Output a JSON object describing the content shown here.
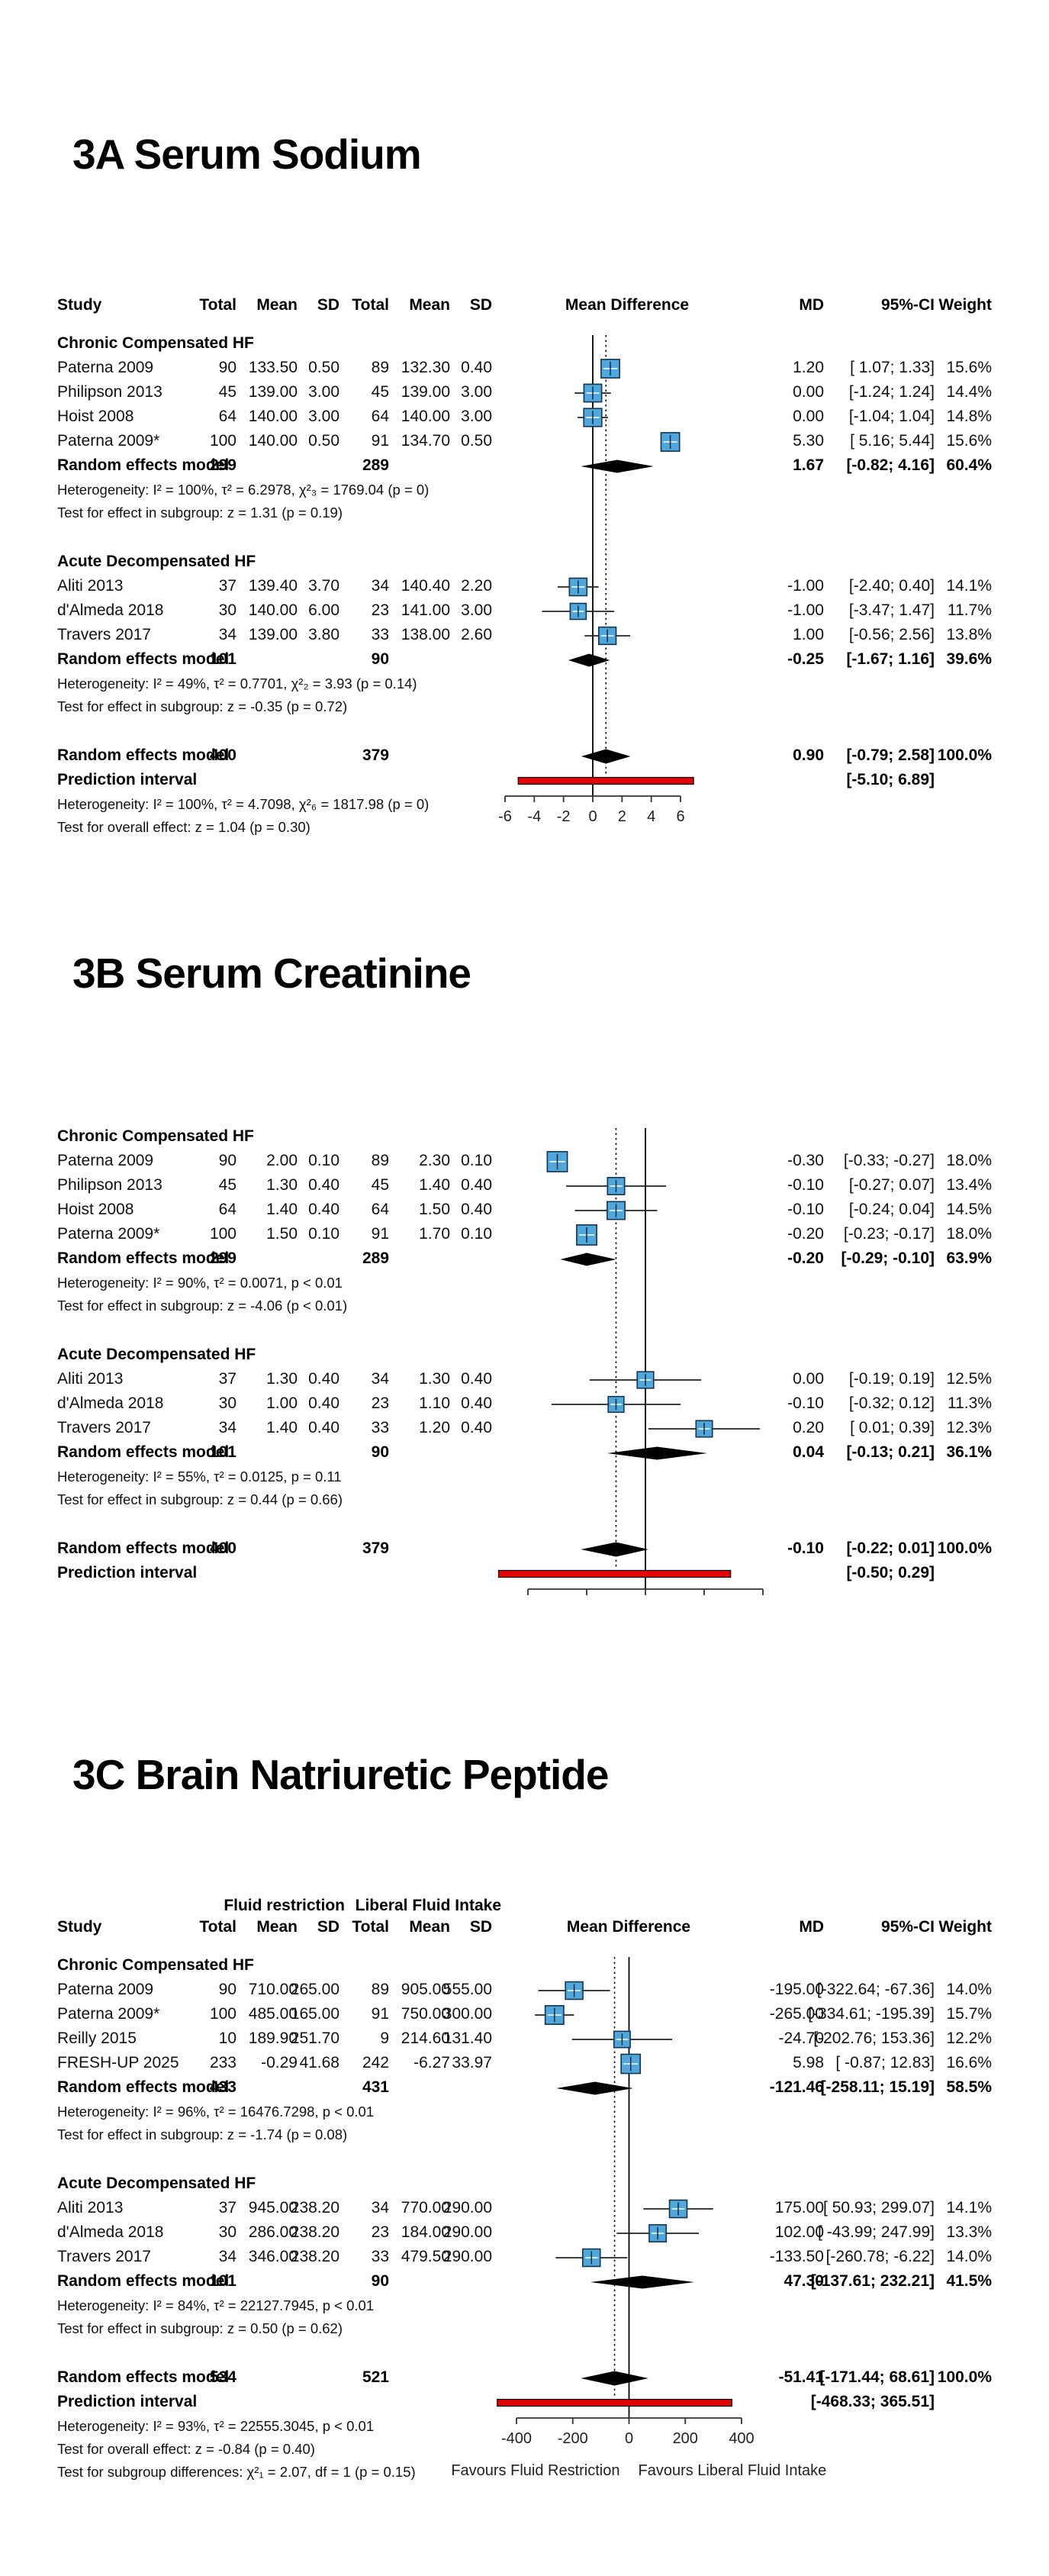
{
  "colors": {
    "marker_fill": "#4fa7db",
    "marker_border": "#16344f",
    "ci_line": "#222222",
    "diamond": "#000000",
    "prediction_bar": "#e00404",
    "axis": "#333333",
    "ref_line": "#000000"
  },
  "chart_data": {
    "type": "forest",
    "effect_measure": "Mean Difference",
    "panels": [
      {
        "id": "3A",
        "title": "3A Serum Sodium",
        "header": {
          "study": "Study",
          "total": "Total",
          "mean": "Mean",
          "sd": "SD",
          "mean_difference": "Mean Difference",
          "md": "MD",
          "ci": "95%-CI",
          "weight": "Weight"
        },
        "axis": {
          "ticks": [
            -6,
            -4,
            -2,
            0,
            2,
            4,
            6
          ],
          "tick_labels": [
            "-6",
            "-4",
            "-2",
            "0",
            "2",
            "4",
            "6"
          ]
        },
        "rows": [
          {
            "type": "group",
            "label": "Chronic Compensated HF"
          },
          {
            "type": "study",
            "label": "Paterna 2009",
            "t1": "90",
            "m1": "133.50",
            "sd1": "0.50",
            "t2": "89",
            "m2": "132.30",
            "sd2": "0.40",
            "md": 1.2,
            "lo": 1.07,
            "hi": 1.33,
            "md_text": "1.20",
            "ci_text": "[ 1.07; 1.33]",
            "w": 15.6,
            "w_text": "15.6%"
          },
          {
            "type": "study",
            "label": "Philipson 2013",
            "t1": "45",
            "m1": "139.00",
            "sd1": "3.00",
            "t2": "45",
            "m2": "139.00",
            "sd2": "3.00",
            "md": 0.0,
            "lo": -1.24,
            "hi": 1.24,
            "md_text": "0.00",
            "ci_text": "[-1.24; 1.24]",
            "w": 14.4,
            "w_text": "14.4%"
          },
          {
            "type": "study",
            "label": "Hoist 2008",
            "t1": "64",
            "m1": "140.00",
            "sd1": "3.00",
            "t2": "64",
            "m2": "140.00",
            "sd2": "3.00",
            "md": 0.0,
            "lo": -1.04,
            "hi": 1.04,
            "md_text": "0.00",
            "ci_text": "[-1.04; 1.04]",
            "w": 14.8,
            "w_text": "14.8%"
          },
          {
            "type": "study",
            "label": "Paterna 2009*",
            "t1": "100",
            "m1": "140.00",
            "sd1": "0.50",
            "t2": "91",
            "m2": "134.70",
            "sd2": "0.50",
            "md": 5.3,
            "lo": 5.16,
            "hi": 5.44,
            "md_text": "5.30",
            "ci_text": "[ 5.16; 5.44]",
            "w": 15.6,
            "w_text": "15.6%"
          },
          {
            "type": "pooled",
            "label": "Random effects model",
            "t1": "299",
            "t2": "289",
            "md": 1.67,
            "lo": -0.82,
            "hi": 4.16,
            "md_text": "1.67",
            "ci_text": "[-0.82; 4.16]",
            "w_text": "60.4%"
          },
          {
            "type": "het",
            "text": "Heterogeneity: I² = 100%, τ² = 6.2978, χ²₃ = 1769.04 (p = 0)"
          },
          {
            "type": "test",
            "text": "Test for effect in subgroup: z = 1.31 (p = 0.19)"
          },
          {
            "type": "group",
            "label": "Acute Decompensated HF",
            "gap": true
          },
          {
            "type": "study",
            "label": "Aliti 2013",
            "t1": "37",
            "m1": "139.40",
            "sd1": "3.70",
            "t2": "34",
            "m2": "140.40",
            "sd2": "2.20",
            "md": -1.0,
            "lo": -2.4,
            "hi": 0.4,
            "md_text": "-1.00",
            "ci_text": "[-2.40; 0.40]",
            "w": 14.1,
            "w_text": "14.1%"
          },
          {
            "type": "study",
            "label": "d'Almeda 2018",
            "t1": "30",
            "m1": "140.00",
            "sd1": "6.00",
            "t2": "23",
            "m2": "141.00",
            "sd2": "3.00",
            "md": -1.0,
            "lo": -3.47,
            "hi": 1.47,
            "md_text": "-1.00",
            "ci_text": "[-3.47; 1.47]",
            "w": 11.7,
            "w_text": "11.7%"
          },
          {
            "type": "study",
            "label": "Travers 2017",
            "t1": "34",
            "m1": "139.00",
            "sd1": "3.80",
            "t2": "33",
            "m2": "138.00",
            "sd2": "2.60",
            "md": 1.0,
            "lo": -0.56,
            "hi": 2.56,
            "md_text": "1.00",
            "ci_text": "[-0.56; 2.56]",
            "w": 13.8,
            "w_text": "13.8%"
          },
          {
            "type": "pooled",
            "label": "Random effects model",
            "t1": "101",
            "t2": "90",
            "md": -0.25,
            "lo": -1.67,
            "hi": 1.16,
            "md_text": "-0.25",
            "ci_text": "[-1.67; 1.16]",
            "w_text": "39.6%"
          },
          {
            "type": "het",
            "text": "Heterogeneity: I² = 49%, τ² = 0.7701, χ²₂ = 3.93 (p = 0.14)"
          },
          {
            "type": "test",
            "text": "Test for effect in subgroup: z = -0.35 (p = 0.72)"
          },
          {
            "type": "pooled",
            "overall": true,
            "label": "Random effects model",
            "t1": "400",
            "t2": "379",
            "md": 0.9,
            "lo": -0.79,
            "hi": 2.58,
            "md_text": "0.90",
            "ci_text": "[-0.79; 2.58]",
            "w_text": "100.0%",
            "gap": true
          },
          {
            "type": "prediction",
            "label": "Prediction interval",
            "lo": -5.1,
            "hi": 6.89,
            "ci_text": "[-5.10; 6.89]"
          },
          {
            "type": "het",
            "text": "Heterogeneity: I² = 100%, τ² = 4.7098, χ²₆ = 1817.98 (p = 0)"
          },
          {
            "type": "test",
            "text": "Test for overall effect: z = 1.04 (p = 0.30)"
          }
        ]
      },
      {
        "id": "3B",
        "title": "3B Serum Creatinine",
        "header": null,
        "axis": {
          "ticks": [
            -0.4,
            -0.2,
            0,
            0.2,
            0.4
          ],
          "tick_labels": null
        },
        "rows": [
          {
            "type": "group",
            "label": "Chronic Compensated HF"
          },
          {
            "type": "study",
            "label": "Paterna 2009",
            "t1": "90",
            "m1": "2.00",
            "sd1": "0.10",
            "t2": "89",
            "m2": "2.30",
            "sd2": "0.10",
            "md": -0.3,
            "lo": -0.33,
            "hi": -0.27,
            "md_text": "-0.30",
            "ci_text": "[-0.33; -0.27]",
            "w": 18.0,
            "w_text": "18.0%"
          },
          {
            "type": "study",
            "label": "Philipson 2013",
            "t1": "45",
            "m1": "1.30",
            "sd1": "0.40",
            "t2": "45",
            "m2": "1.40",
            "sd2": "0.40",
            "md": -0.1,
            "lo": -0.27,
            "hi": 0.07,
            "md_text": "-0.10",
            "ci_text": "[-0.27; 0.07]",
            "w": 13.4,
            "w_text": "13.4%"
          },
          {
            "type": "study",
            "label": "Hoist 2008",
            "t1": "64",
            "m1": "1.40",
            "sd1": "0.40",
            "t2": "64",
            "m2": "1.50",
            "sd2": "0.40",
            "md": -0.1,
            "lo": -0.24,
            "hi": 0.04,
            "md_text": "-0.10",
            "ci_text": "[-0.24; 0.04]",
            "w": 14.5,
            "w_text": "14.5%"
          },
          {
            "type": "study",
            "label": "Paterna 2009*",
            "t1": "100",
            "m1": "1.50",
            "sd1": "0.10",
            "t2": "91",
            "m2": "1.70",
            "sd2": "0.10",
            "md": -0.2,
            "lo": -0.23,
            "hi": -0.17,
            "md_text": "-0.20",
            "ci_text": "[-0.23; -0.17]",
            "w": 18.0,
            "w_text": "18.0%"
          },
          {
            "type": "pooled",
            "label": "Random effects model",
            "t1": "299",
            "t2": "289",
            "md": -0.2,
            "lo": -0.29,
            "hi": -0.1,
            "md_text": "-0.20",
            "ci_text": "[-0.29; -0.10]",
            "w_text": "63.9%"
          },
          {
            "type": "het",
            "text": "Heterogeneity: I² = 90%, τ² = 0.0071, p < 0.01"
          },
          {
            "type": "test",
            "text": "Test for effect in subgroup: z = -4.06 (p < 0.01)"
          },
          {
            "type": "group",
            "label": "Acute Decompensated HF",
            "gap": true
          },
          {
            "type": "study",
            "label": "Aliti 2013",
            "t1": "37",
            "m1": "1.30",
            "sd1": "0.40",
            "t2": "34",
            "m2": "1.30",
            "sd2": "0.40",
            "md": 0.0,
            "lo": -0.19,
            "hi": 0.19,
            "md_text": "0.00",
            "ci_text": "[-0.19; 0.19]",
            "w": 12.5,
            "w_text": "12.5%"
          },
          {
            "type": "study",
            "label": "d'Almeda 2018",
            "t1": "30",
            "m1": "1.00",
            "sd1": "0.40",
            "t2": "23",
            "m2": "1.10",
            "sd2": "0.40",
            "md": -0.1,
            "lo": -0.32,
            "hi": 0.12,
            "md_text": "-0.10",
            "ci_text": "[-0.32; 0.12]",
            "w": 11.3,
            "w_text": "11.3%"
          },
          {
            "type": "study",
            "label": "Travers 2017",
            "t1": "34",
            "m1": "1.40",
            "sd1": "0.40",
            "t2": "33",
            "m2": "1.20",
            "sd2": "0.40",
            "md": 0.2,
            "lo": 0.01,
            "hi": 0.39,
            "md_text": "0.20",
            "ci_text": "[ 0.01; 0.39]",
            "w": 12.3,
            "w_text": "12.3%"
          },
          {
            "type": "pooled",
            "label": "Random effects model",
            "t1": "101",
            "t2": "90",
            "md": 0.04,
            "lo": -0.13,
            "hi": 0.21,
            "md_text": "0.04",
            "ci_text": "[-0.13; 0.21]",
            "w_text": "36.1%"
          },
          {
            "type": "het",
            "text": "Heterogeneity: I² = 55%, τ² = 0.0125, p = 0.11"
          },
          {
            "type": "test",
            "text": "Test for effect in subgroup: z = 0.44 (p = 0.66)"
          },
          {
            "type": "pooled",
            "overall": true,
            "label": "Random effects model",
            "t1": "400",
            "t2": "379",
            "md": -0.1,
            "lo": -0.22,
            "hi": 0.01,
            "md_text": "-0.10",
            "ci_text": "[-0.22; 0.01]",
            "w_text": "100.0%",
            "gap": true
          },
          {
            "type": "prediction",
            "label": "Prediction interval",
            "lo": -0.5,
            "hi": 0.29,
            "ci_text": "[-0.50; 0.29]"
          }
        ]
      },
      {
        "id": "3C",
        "title": "3C Brain Natriuretic Peptide",
        "header": {
          "group1": "Fluid restriction",
          "group2": "Liberal Fluid Intake",
          "study": "Study",
          "total": "Total",
          "mean": "Mean",
          "sd": "SD",
          "mean_difference": "Mean Difference",
          "md": "MD",
          "ci": "95%-CI",
          "weight": "Weight"
        },
        "axis": {
          "ticks": [
            -400,
            -200,
            0,
            200,
            400
          ],
          "tick_labels": [
            "-400",
            "-200",
            "0",
            "200",
            "400"
          ]
        },
        "favours": [
          "Favours Fluid Restriction",
          "Favours Liberal Fluid Intake"
        ],
        "rows": [
          {
            "type": "group",
            "label": "Chronic Compensated HF"
          },
          {
            "type": "study",
            "label": "Paterna 2009",
            "t1": "90",
            "m1": "710.00",
            "sd1": "265.00",
            "t2": "89",
            "m2": "905.00",
            "sd2": "555.00",
            "md": -195.0,
            "lo": -322.64,
            "hi": -67.36,
            "md_text": "-195.00",
            "ci_text": "[-322.64; -67.36]",
            "w": 14.0,
            "w_text": "14.0%"
          },
          {
            "type": "study",
            "label": "Paterna 2009*",
            "t1": "100",
            "m1": "485.00",
            "sd1": "165.00",
            "t2": "91",
            "m2": "750.00",
            "sd2": "300.00",
            "md": -265.0,
            "lo": -334.61,
            "hi": -195.39,
            "md_text": "-265.00",
            "ci_text": "[-334.61; -195.39]",
            "w": 15.7,
            "w_text": "15.7%"
          },
          {
            "type": "study",
            "label": "Reilly 2015",
            "t1": "10",
            "m1": "189.90",
            "sd1": "251.70",
            "t2": "9",
            "m2": "214.60",
            "sd2": "131.40",
            "md": -24.7,
            "lo": -202.76,
            "hi": 153.36,
            "md_text": "-24.70",
            "ci_text": "[-202.76; 153.36]",
            "w": 12.2,
            "w_text": "12.2%"
          },
          {
            "type": "study",
            "label": "FRESH-UP 2025",
            "t1": "233",
            "m1": "-0.29",
            "sd1": "41.68",
            "t2": "242",
            "m2": "-6.27",
            "sd2": "33.97",
            "md": 5.98,
            "lo": -0.87,
            "hi": 12.83,
            "md_text": "5.98",
            "ci_text": "[ -0.87; 12.83]",
            "w": 16.6,
            "w_text": "16.6%"
          },
          {
            "type": "pooled",
            "label": "Random effects model",
            "t1": "433",
            "t2": "431",
            "md": -121.46,
            "lo": -258.11,
            "hi": 15.19,
            "md_text": "-121.46",
            "ci_text": "[-258.11; 15.19]",
            "w_text": "58.5%"
          },
          {
            "type": "het",
            "text": "Heterogeneity: I² = 96%, τ² = 16476.7298, p < 0.01"
          },
          {
            "type": "test",
            "text": "Test for effect in subgroup: z = -1.74 (p = 0.08)"
          },
          {
            "type": "group",
            "label": "Acute Decompensated HF",
            "gap": true
          },
          {
            "type": "study",
            "label": "Aliti 2013",
            "t1": "37",
            "m1": "945.00",
            "sd1": "238.20",
            "t2": "34",
            "m2": "770.00",
            "sd2": "290.00",
            "md": 175.0,
            "lo": 50.93,
            "hi": 299.07,
            "md_text": "175.00",
            "ci_text": "[ 50.93; 299.07]",
            "w": 14.1,
            "w_text": "14.1%"
          },
          {
            "type": "study",
            "label": "d'Almeda 2018",
            "t1": "30",
            "m1": "286.00",
            "sd1": "238.20",
            "t2": "23",
            "m2": "184.00",
            "sd2": "290.00",
            "md": 102.0,
            "lo": -43.99,
            "hi": 247.99,
            "md_text": "102.00",
            "ci_text": "[ -43.99; 247.99]",
            "w": 13.3,
            "w_text": "13.3%"
          },
          {
            "type": "study",
            "label": "Travers 2017",
            "t1": "34",
            "m1": "346.00",
            "sd1": "238.20",
            "t2": "33",
            "m2": "479.50",
            "sd2": "290.00",
            "md": -133.5,
            "lo": -260.78,
            "hi": -6.22,
            "md_text": "-133.50",
            "ci_text": "[-260.78; -6.22]",
            "w": 14.0,
            "w_text": "14.0%"
          },
          {
            "type": "pooled",
            "label": "Random effects model",
            "t1": "101",
            "t2": "90",
            "md": 47.3,
            "lo": -137.61,
            "hi": 232.21,
            "md_text": "47.30",
            "ci_text": "[-137.61; 232.21]",
            "w_text": "41.5%"
          },
          {
            "type": "het",
            "text": "Heterogeneity: I² = 84%, τ² = 22127.7945, p < 0.01"
          },
          {
            "type": "test",
            "text": "Test for effect in subgroup: z = 0.50 (p = 0.62)"
          },
          {
            "type": "pooled",
            "overall": true,
            "label": "Random effects model",
            "t1": "534",
            "t2": "521",
            "md": -51.41,
            "lo": -171.44,
            "hi": 68.61,
            "md_text": "-51.41",
            "ci_text": "[-171.44; 68.61]",
            "w_text": "100.0%",
            "gap": true
          },
          {
            "type": "prediction",
            "label": "Prediction interval",
            "lo": -468.33,
            "hi": 365.51,
            "ci_text": "[-468.33; 365.51]"
          },
          {
            "type": "het",
            "text": "Heterogeneity: I² = 93%, τ² = 22555.3045, p < 0.01"
          },
          {
            "type": "test",
            "text": "Test for overall effect: z = -0.84 (p = 0.40)"
          },
          {
            "type": "test",
            "text": "Test for subgroup differences: χ²₁ = 2.07, df = 1 (p = 0.15)"
          }
        ]
      }
    ]
  }
}
